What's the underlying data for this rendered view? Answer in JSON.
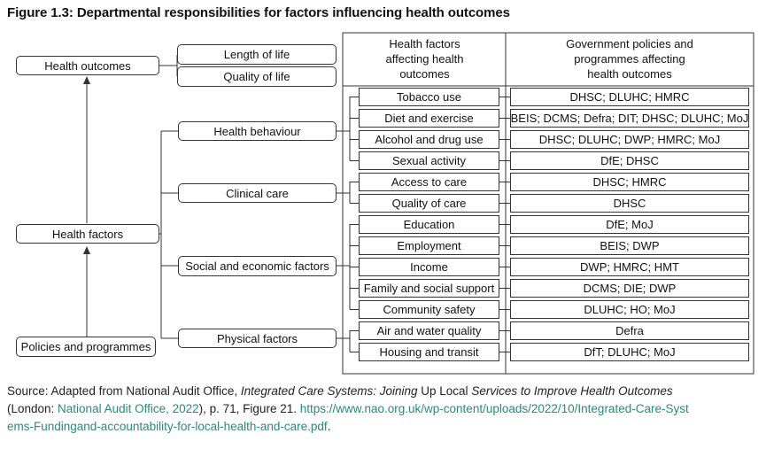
{
  "title": "Figure 1.3: Departmental responsibilities for factors influencing health outcomes",
  "left_boxes": {
    "health_outcomes": "Health outcomes",
    "health_factors": "Health factors",
    "policies": "Policies and programmes"
  },
  "outcome_boxes": [
    "Length of life",
    "Quality of life"
  ],
  "category_boxes": [
    "Health behaviour",
    "Clinical care",
    "Social and economic factors",
    "Physical factors"
  ],
  "table": {
    "header_factors": "Health factors\naffecting health\noutcomes",
    "header_policies": "Government policies and\nprogrammes affecting\nhealth outcomes",
    "rows": [
      {
        "factor": "Tobacco use",
        "depts": "DHSC; DLUHC; HMRC"
      },
      {
        "factor": "Diet and exercise",
        "depts": "BEIS; DCMS; Defra; DIT; DHSC; DLUHC; MoJ"
      },
      {
        "factor": "Alcohol and drug use",
        "depts": "DHSC; DLUHC; DWP; HMRC;  MoJ"
      },
      {
        "factor": "Sexual activity",
        "depts": "DfE; DHSC"
      },
      {
        "factor": "Access to care",
        "depts": "DHSC; HMRC"
      },
      {
        "factor": "Quality of care",
        "depts": "DHSC"
      },
      {
        "factor": "Education",
        "depts": "DfE; MoJ"
      },
      {
        "factor": "Employment",
        "depts": "BEIS; DWP"
      },
      {
        "factor": "Income",
        "depts": "DWP; HMRC; HMT"
      },
      {
        "factor": "Family and social support",
        "depts": "DCMS; DIE; DWP"
      },
      {
        "factor": "Community safety",
        "depts": "DLUHC; HO; MoJ"
      },
      {
        "factor": "Air and water quality",
        "depts": "Defra"
      },
      {
        "factor": "Housing and transit",
        "depts": "DfT; DLUHC; MoJ"
      }
    ]
  },
  "source": {
    "prefix": "Source: Adapted from National Audit Office, ",
    "title_part1": "Integrated Care Systems: Joining ",
    "up": "Up",
    "local": " Local ",
    "title_part2": "Services to Improve Health Outcomes",
    "london": "(London: ",
    "publisher": "National Audit Office, 2022",
    "page": "), p. 71, Figure 21. ",
    "url_line1": "https://www.nao.org.uk/wp-content/uploads/2022/10/Integrated-Care-Syst",
    "url_line2": "ems-Fundingand-accountability-for-local-health-and-care.pdf",
    "end": "."
  }
}
